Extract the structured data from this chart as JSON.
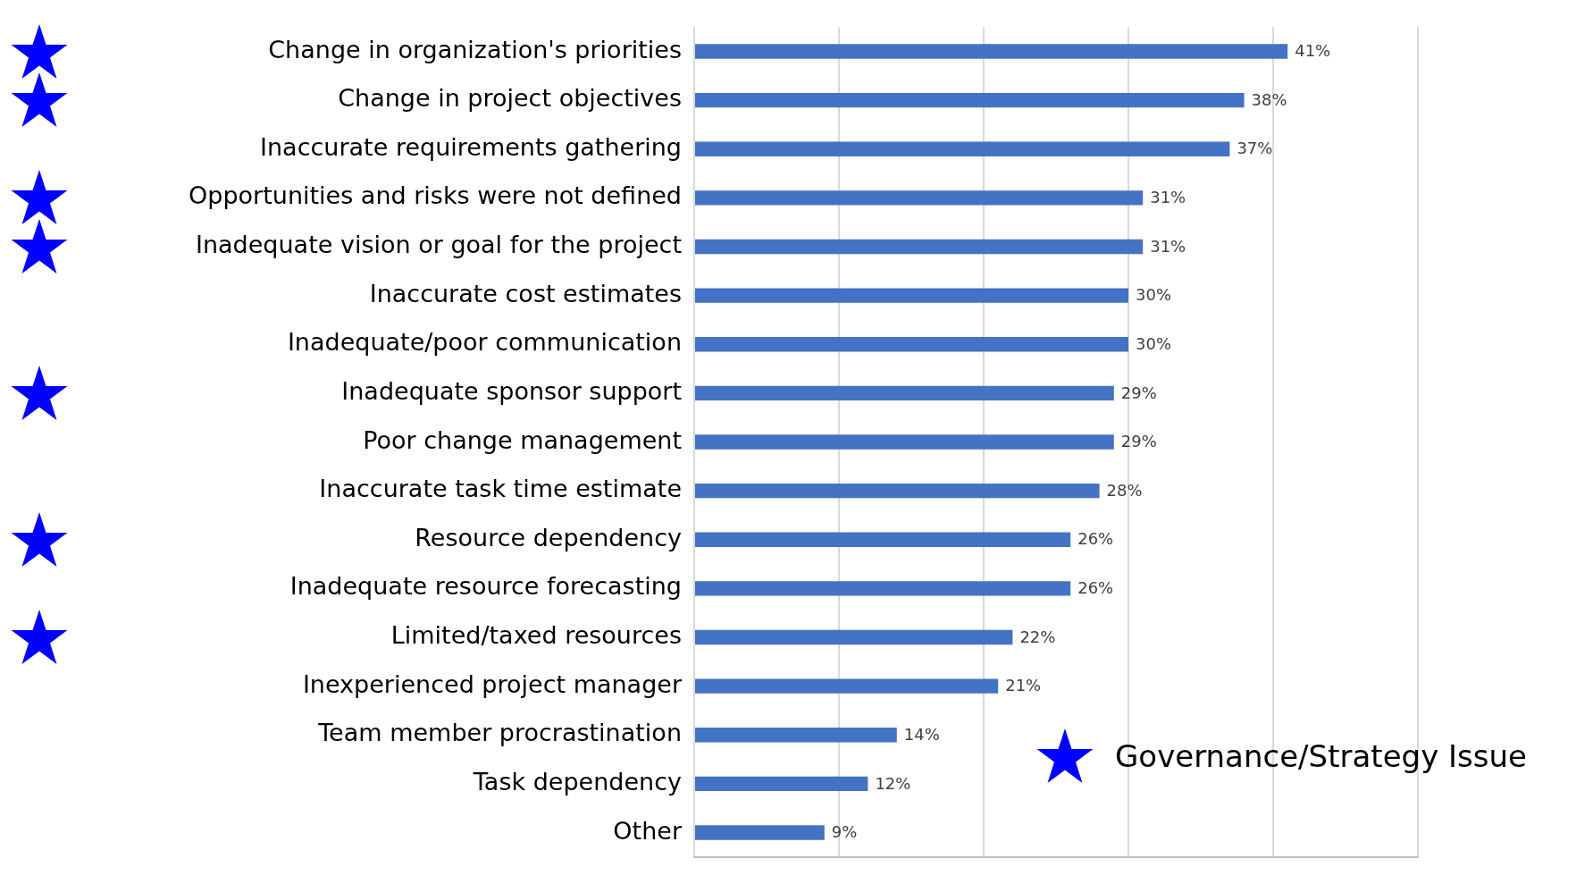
{
  "chart_data": {
    "type": "bar",
    "orientation": "horizontal",
    "categories": [
      "Change in organization's priorities",
      "Change in project objectives",
      "Inaccurate requirements gathering",
      "Opportunities and risks were not defined",
      "Inadequate vision or goal for the project",
      "Inaccurate cost estimates",
      "Inadequate/poor communication",
      "Inadequate sponsor support",
      "Poor change management",
      "Inaccurate task time estimate",
      "Resource dependency",
      "Inadequate resource forecasting",
      "Limited/taxed resources",
      "Inexperienced project manager",
      "Team member procrastination",
      "Task dependency",
      "Other"
    ],
    "values": [
      41,
      38,
      37,
      31,
      31,
      30,
      30,
      29,
      29,
      28,
      26,
      26,
      22,
      21,
      14,
      12,
      9
    ],
    "value_labels": [
      "41%",
      "38%",
      "37%",
      "31%",
      "31%",
      "30%",
      "30%",
      "29%",
      "29%",
      "28%",
      "26%",
      "26%",
      "22%",
      "21%",
      "14%",
      "12%",
      "9%"
    ],
    "color": "#4472c4",
    "xlim": [
      0,
      50
    ],
    "xticks": [
      {
        "value": 0,
        "label": null
      },
      {
        "value": 10,
        "label": null
      },
      {
        "value": 20,
        "label": null
      },
      {
        "value": 30,
        "label": null
      },
      {
        "value": 40,
        "label": null
      },
      {
        "value": 50,
        "label": null
      }
    ],
    "grid": "x",
    "legend": false,
    "tick_labels": "y",
    "annotations": [
      "Governance/Strategy Issue"
    ]
  }
}
